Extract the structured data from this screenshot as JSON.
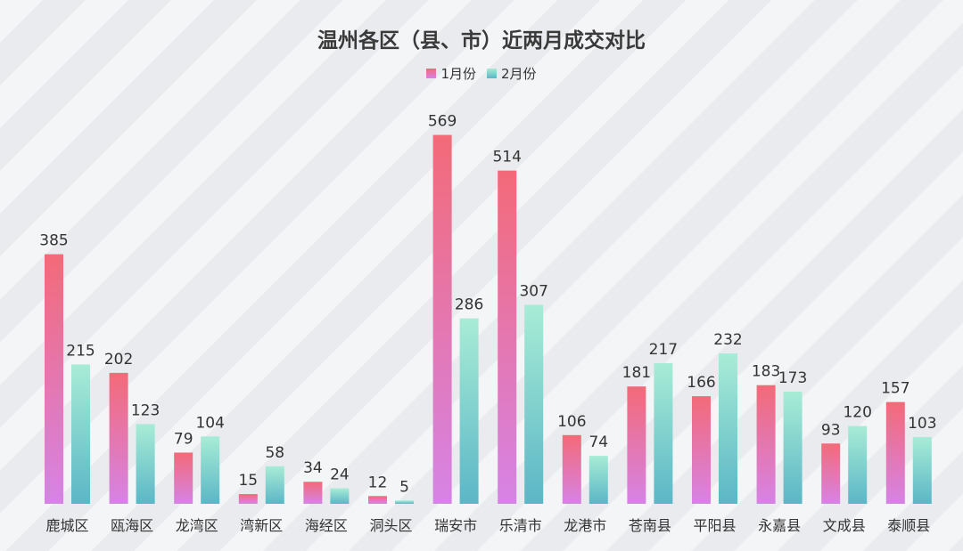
{
  "chart_data": {
    "type": "bar",
    "title": "温州各区（县、市）近两月成交对比",
    "categories": [
      "鹿城区",
      "瓯海区",
      "龙湾区",
      "湾新区",
      "海经区",
      "洞头区",
      "瑞安市",
      "乐清市",
      "龙港市",
      "苍南县",
      "平阳县",
      "永嘉县",
      "文成县",
      "泰顺县"
    ],
    "series": [
      {
        "name": "1月份",
        "values": [
          385,
          202,
          79,
          15,
          34,
          12,
          569,
          514,
          106,
          181,
          166,
          183,
          93,
          157
        ]
      },
      {
        "name": "2月份",
        "values": [
          215,
          123,
          104,
          58,
          24,
          5,
          286,
          307,
          74,
          217,
          232,
          173,
          120,
          103
        ]
      }
    ],
    "ylim": [
      0,
      600
    ],
    "grid": false,
    "legend_position": "top-center",
    "colors": {
      "series1_top": "#f36a78",
      "series1_bottom": "#d683e6",
      "series2_top": "#a8ecd6",
      "series2_bottom": "#5bb6c6"
    }
  }
}
